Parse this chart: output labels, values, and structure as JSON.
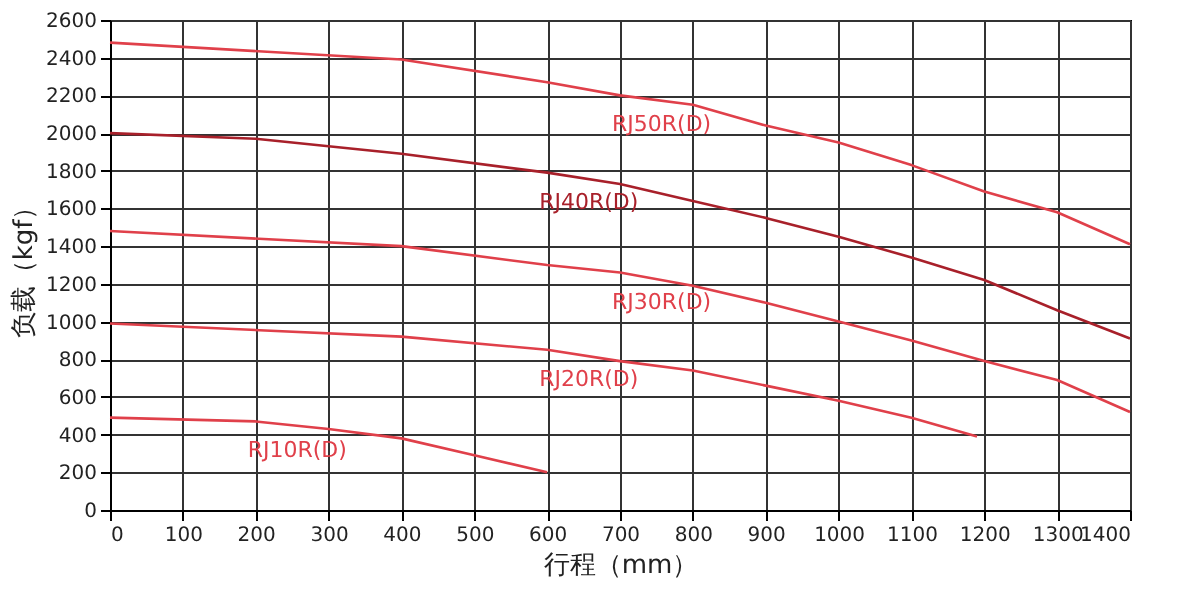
{
  "chart_data": {
    "type": "line",
    "xlabel": "行程（mm）",
    "ylabel": "负载（kgf）",
    "xlim": [
      0,
      1400
    ],
    "xticks": [
      0,
      100,
      200,
      300,
      400,
      500,
      600,
      700,
      800,
      900,
      1000,
      1100,
      1200,
      1300,
      1400
    ],
    "ylim": [
      0,
      2600
    ],
    "yticks": [
      0,
      200,
      400,
      600,
      800,
      1000,
      1200,
      1400,
      1600,
      1800,
      2000,
      2200,
      2400,
      2600
    ],
    "grid": true,
    "marker": "none",
    "line_style": "solid",
    "series": [
      {
        "name": "RJ50R(D)",
        "color": "#e0404a",
        "x": [
          0,
          400,
          600,
          700,
          800,
          900,
          1000,
          1100,
          1200,
          1300,
          1400
        ],
        "values": [
          2480,
          2390,
          2270,
          2200,
          2150,
          2040,
          1950,
          1830,
          1690,
          1580,
          1410
        ]
      },
      {
        "name": "RJ40R(D)",
        "color": "#a8202a",
        "x": [
          0,
          200,
          400,
          600,
          700,
          800,
          900,
          1000,
          1100,
          1200,
          1300,
          1400
        ],
        "values": [
          2000,
          1970,
          1890,
          1790,
          1730,
          1640,
          1550,
          1450,
          1340,
          1220,
          1060,
          910
        ]
      },
      {
        "name": "RJ30R(D)",
        "color": "#e0404a",
        "x": [
          0,
          400,
          600,
          700,
          800,
          900,
          1000,
          1100,
          1200,
          1300,
          1400
        ],
        "values": [
          1480,
          1400,
          1300,
          1260,
          1190,
          1100,
          1000,
          900,
          790,
          690,
          520
        ]
      },
      {
        "name": "RJ20R(D)",
        "color": "#e0404a",
        "x": [
          0,
          400,
          600,
          700,
          800,
          900,
          1000,
          1100,
          1190
        ],
        "values": [
          990,
          920,
          850,
          790,
          740,
          660,
          580,
          490,
          390
        ]
      },
      {
        "name": "RJ10R(D)",
        "color": "#e0404a",
        "x": [
          0,
          200,
          300,
          400,
          500,
          600
        ],
        "values": [
          490,
          470,
          430,
          380,
          290,
          200
        ]
      }
    ]
  }
}
